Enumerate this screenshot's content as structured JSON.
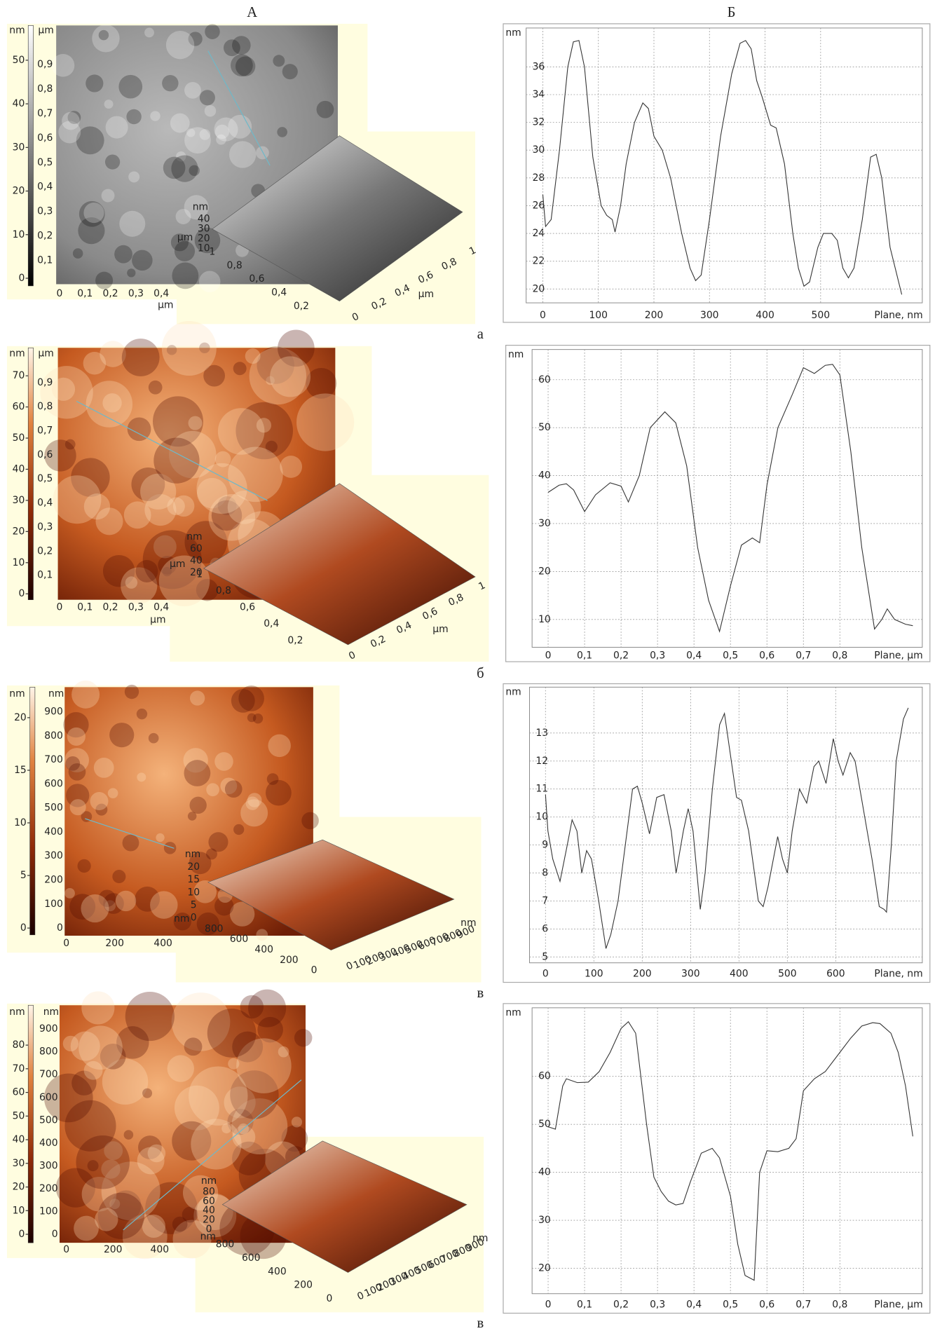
{
  "headers": {
    "left": "А",
    "right": "Б"
  },
  "row_labels": [
    "а",
    "б",
    "в",
    "в"
  ],
  "panels": [
    {
      "colorbar_unit": "nm",
      "colorbar_ticks": [
        0,
        10,
        20,
        30,
        40,
        50
      ],
      "image_y_unit": "µm",
      "image_y_ticks": [
        {
          "value": 0.1,
          "label": "0,1"
        },
        {
          "value": 0.2,
          "label": "0,2"
        },
        {
          "value": 0.3,
          "label": "0,3"
        },
        {
          "value": 0.4,
          "label": "0,4"
        },
        {
          "value": 0.5,
          "label": "0,5"
        },
        {
          "value": 0.6,
          "label": "0,6"
        },
        {
          "value": 0.7,
          "label": "0,7"
        },
        {
          "value": 0.8,
          "label": "0,8"
        },
        {
          "value": 0.9,
          "label": "0,9"
        }
      ],
      "image_x_ticks": [
        0,
        {
          "value": 0.1,
          "label": "0,1"
        },
        {
          "value": 0.2,
          "label": "0,2"
        },
        {
          "value": 0.3,
          "label": "0,3"
        },
        {
          "value": 0.4,
          "label": "0,4"
        }
      ],
      "image_x_unit": "µm",
      "inset": {
        "z_unit": "nm",
        "z_ticks": [
          40,
          30,
          20,
          10
        ],
        "y_unit": "µm",
        "left_ticks": [
          1,
          {
            "value": 0.8,
            "label": "0,8"
          },
          {
            "value": 0.6,
            "label": "0,6"
          },
          {
            "value": 0.4,
            "label": "0,4"
          },
          {
            "value": 0.2,
            "label": "0,2"
          }
        ],
        "right_ticks": [
          0,
          {
            "value": 0.2,
            "label": "0,2"
          },
          {
            "value": 0.4,
            "label": "0,4"
          },
          {
            "value": 0.6,
            "label": "0,6"
          },
          {
            "value": 0.8,
            "label": "0,8"
          },
          1
        ],
        "right_unit": "µm"
      }
    },
    {
      "colorbar_unit": "nm",
      "colorbar_ticks": [
        0,
        10,
        20,
        30,
        40,
        50,
        60,
        70
      ],
      "image_y_unit": "µm",
      "image_y_ticks": [
        {
          "value": 0.1,
          "label": "0,1"
        },
        {
          "value": 0.2,
          "label": "0,2"
        },
        {
          "value": 0.3,
          "label": "0,3"
        },
        {
          "value": 0.4,
          "label": "0,4"
        },
        {
          "value": 0.5,
          "label": "0,5"
        },
        {
          "value": 0.6,
          "label": "0,6"
        },
        {
          "value": 0.7,
          "label": "0,7"
        },
        {
          "value": 0.8,
          "label": "0,8"
        },
        {
          "value": 0.9,
          "label": "0,9"
        }
      ],
      "image_x_ticks": [
        0,
        {
          "value": 0.1,
          "label": "0,1"
        },
        {
          "value": 0.2,
          "label": "0,2"
        },
        {
          "value": 0.3,
          "label": "0,3"
        },
        {
          "value": 0.4,
          "label": "0,4"
        }
      ],
      "image_x_unit": "µm",
      "inset": {
        "z_unit": "nm",
        "z_ticks": [
          60,
          40,
          20
        ],
        "y_unit": "µm",
        "left_ticks": [
          1,
          {
            "value": 0.8,
            "label": "0,8"
          },
          {
            "value": 0.6,
            "label": "0,6"
          },
          {
            "value": 0.4,
            "label": "0,4"
          },
          {
            "value": 0.2,
            "label": "0,2"
          }
        ],
        "right_ticks": [
          0,
          {
            "value": 0.2,
            "label": "0,2"
          },
          {
            "value": 0.4,
            "label": "0,4"
          },
          {
            "value": 0.6,
            "label": "0,6"
          },
          {
            "value": 0.8,
            "label": "0,8"
          },
          1
        ],
        "right_unit": "µm"
      }
    },
    {
      "colorbar_unit": "nm",
      "colorbar_ticks": [
        0,
        5,
        10,
        15,
        20
      ],
      "image_y_unit": "nm",
      "image_y_ticks": [
        0,
        100,
        200,
        300,
        400,
        500,
        600,
        700,
        800,
        900
      ],
      "image_x_ticks": [
        0,
        200,
        400
      ],
      "inset": {
        "z_unit": "nm",
        "z_ticks": [
          20,
          15,
          10,
          5,
          0
        ],
        "y_unit": "nm",
        "left_ticks": [
          800,
          600,
          400,
          200,
          0
        ],
        "right_ticks": [
          0,
          100,
          200,
          300,
          400,
          500,
          600,
          700,
          800,
          900
        ],
        "right_unit": "nm"
      }
    },
    {
      "colorbar_unit": "nm",
      "colorbar_ticks": [
        0,
        10,
        20,
        30,
        40,
        50,
        60,
        70,
        80
      ],
      "image_y_unit": "nm",
      "image_y_ticks": [
        0,
        100,
        200,
        300,
        400,
        500,
        600,
        700,
        800,
        900
      ],
      "image_x_ticks": [
        0,
        200,
        400
      ],
      "inset": {
        "z_unit": "nm",
        "z_ticks": [
          80,
          60,
          40,
          20,
          0
        ],
        "y_unit": "nm",
        "left_ticks": [
          800,
          600,
          400,
          200,
          0
        ],
        "right_ticks": [
          0,
          100,
          200,
          300,
          400,
          500,
          600,
          700,
          800,
          900
        ],
        "right_unit": "nm"
      }
    }
  ],
  "chart_data": [
    {
      "type": "line",
      "y_label": "nm",
      "x_label": "Plane, nm",
      "color": "#333333",
      "grid": true,
      "xlim": [
        -30,
        683
      ],
      "ylim": [
        19,
        38.8
      ],
      "xticks": [
        0,
        100,
        200,
        300,
        400,
        500
      ],
      "yticks": [
        20,
        22,
        24,
        26,
        28,
        30,
        32,
        34,
        36
      ],
      "x": [
        0,
        5,
        15,
        30,
        45,
        55,
        65,
        75,
        90,
        105,
        115,
        125,
        130,
        140,
        150,
        165,
        180,
        190,
        200,
        215,
        230,
        250,
        265,
        275,
        285,
        300,
        320,
        340,
        355,
        365,
        375,
        385,
        395,
        410,
        420,
        435,
        450,
        460,
        470,
        480,
        495,
        505,
        520,
        530,
        540,
        550,
        560,
        575,
        590,
        600,
        610,
        625,
        646
      ],
      "values": [
        26.8,
        24.5,
        25,
        30,
        36,
        37.8,
        37.9,
        36,
        29.5,
        26,
        25.3,
        25,
        24.1,
        26,
        29,
        32,
        33.4,
        33,
        31,
        30,
        28,
        24,
        21.5,
        20.6,
        21,
        25,
        31,
        35.5,
        37.7,
        37.9,
        37.3,
        35,
        33.8,
        31.8,
        31.6,
        29,
        24,
        21.5,
        20.2,
        20.5,
        23,
        24,
        24,
        23.5,
        21.5,
        20.8,
        21.5,
        25,
        29.5,
        29.7,
        28,
        23,
        19.6
      ]
    },
    {
      "type": "line",
      "y_label": "nm",
      "x_label": "Plane, µm",
      "color": "#333333",
      "grid": true,
      "xlim": [
        -0.044,
        1.026
      ],
      "ylim": [
        4.2,
        66.3
      ],
      "xticks": [
        0,
        {
          "value": 0.1,
          "label": "0,1"
        },
        {
          "value": 0.2,
          "label": "0,2"
        },
        {
          "value": 0.3,
          "label": "0,3"
        },
        {
          "value": 0.4,
          "label": "0,4"
        },
        {
          "value": 0.5,
          "label": "0,5"
        },
        {
          "value": 0.6,
          "label": "0,6"
        },
        {
          "value": 0.7,
          "label": "0,7"
        },
        {
          "value": 0.8,
          "label": "0,8"
        }
      ],
      "yticks": [
        10,
        20,
        30,
        40,
        50,
        60
      ],
      "x": [
        0,
        0.03,
        0.05,
        0.07,
        0.1,
        0.13,
        0.17,
        0.2,
        0.22,
        0.25,
        0.28,
        0.32,
        0.35,
        0.38,
        0.41,
        0.44,
        0.47,
        0.5,
        0.53,
        0.56,
        0.58,
        0.6,
        0.63,
        0.67,
        0.7,
        0.73,
        0.76,
        0.78,
        0.8,
        0.83,
        0.86,
        0.895,
        0.915,
        0.93,
        0.95,
        0.98,
        1.0
      ],
      "values": [
        36.5,
        38,
        38.3,
        37,
        32.5,
        36,
        38.5,
        37.8,
        34.5,
        40,
        50,
        53.3,
        51,
        42,
        25,
        14,
        7.5,
        17,
        25.5,
        27,
        26,
        38,
        50,
        57,
        62.5,
        61.3,
        63,
        63.2,
        61,
        45,
        25,
        8,
        10,
        12.2,
        10,
        9,
        8.7
      ]
    },
    {
      "type": "line",
      "y_label": "nm",
      "x_label": "Plane, nm",
      "color": "#333333",
      "grid": true,
      "xlim": [
        -33,
        779
      ],
      "ylim": [
        4.79,
        14.64
      ],
      "xticks": [
        0,
        100,
        200,
        300,
        400,
        500,
        600
      ],
      "yticks": [
        5,
        6,
        7,
        8,
        9,
        10,
        11,
        12,
        13
      ],
      "x": [
        0,
        5,
        15,
        30,
        45,
        55,
        65,
        75,
        85,
        95,
        110,
        125,
        135,
        150,
        165,
        180,
        190,
        200,
        215,
        230,
        245,
        260,
        270,
        285,
        295,
        305,
        320,
        330,
        345,
        360,
        370,
        380,
        395,
        405,
        420,
        440,
        450,
        460,
        480,
        490,
        500,
        510,
        525,
        540,
        555,
        565,
        580,
        595,
        605,
        615,
        630,
        640,
        660,
        675,
        690,
        700,
        705,
        715,
        725,
        740,
        750
      ],
      "values": [
        10.8,
        9.5,
        8.5,
        7.7,
        9,
        9.9,
        9.5,
        8,
        8.8,
        8.5,
        7,
        5.3,
        5.8,
        7,
        9,
        11,
        11.1,
        10.5,
        9.4,
        10.7,
        10.8,
        9.5,
        8,
        9.5,
        10.3,
        9.5,
        6.7,
        8,
        11,
        13.3,
        13.7,
        12.5,
        10.7,
        10.6,
        9.5,
        7,
        6.8,
        7.5,
        9.3,
        8.5,
        8,
        9.5,
        11,
        10.5,
        11.8,
        12,
        11.2,
        12.8,
        12,
        11.5,
        12.3,
        12,
        10,
        8.5,
        6.8,
        6.7,
        6.6,
        9,
        12,
        13.5,
        13.9
      ]
    },
    {
      "type": "line",
      "y_label": "nm",
      "x_label": "Plane, µm",
      "color": "#333333",
      "grid": true,
      "xlim": [
        -0.044,
        1.026
      ],
      "ylim": [
        14.7,
        74.3
      ],
      "xticks": [
        0,
        {
          "value": 0.1,
          "label": "0,1"
        },
        {
          "value": 0.2,
          "label": "0,2"
        },
        {
          "value": 0.3,
          "label": "0,3"
        },
        {
          "value": 0.4,
          "label": "0,4"
        },
        {
          "value": 0.5,
          "label": "0,5"
        },
        {
          "value": 0.6,
          "label": "0,6"
        },
        {
          "value": 0.7,
          "label": "0,7"
        },
        {
          "value": 0.8,
          "label": "0,8"
        }
      ],
      "yticks": [
        20,
        30,
        40,
        50,
        60
      ],
      "x": [
        0,
        0.02,
        0.04,
        0.05,
        0.08,
        0.11,
        0.14,
        0.17,
        0.2,
        0.22,
        0.24,
        0.27,
        0.29,
        0.31,
        0.33,
        0.35,
        0.37,
        0.39,
        0.42,
        0.45,
        0.47,
        0.5,
        0.52,
        0.54,
        0.565,
        0.58,
        0.6,
        0.63,
        0.66,
        0.68,
        0.7,
        0.73,
        0.76,
        0.8,
        0.83,
        0.86,
        0.89,
        0.91,
        0.94,
        0.96,
        0.98,
        1.0
      ],
      "values": [
        49.5,
        49,
        58,
        59.5,
        58.7,
        58.8,
        61,
        65,
        70,
        71.4,
        69,
        50,
        39,
        36,
        34,
        33.2,
        33.5,
        38,
        44,
        45,
        43,
        35,
        25,
        18.5,
        17.5,
        40,
        44.5,
        44.3,
        45,
        47,
        57,
        59.5,
        61,
        65,
        68,
        70.5,
        71.2,
        71,
        69,
        65,
        58,
        47.5
      ]
    }
  ]
}
